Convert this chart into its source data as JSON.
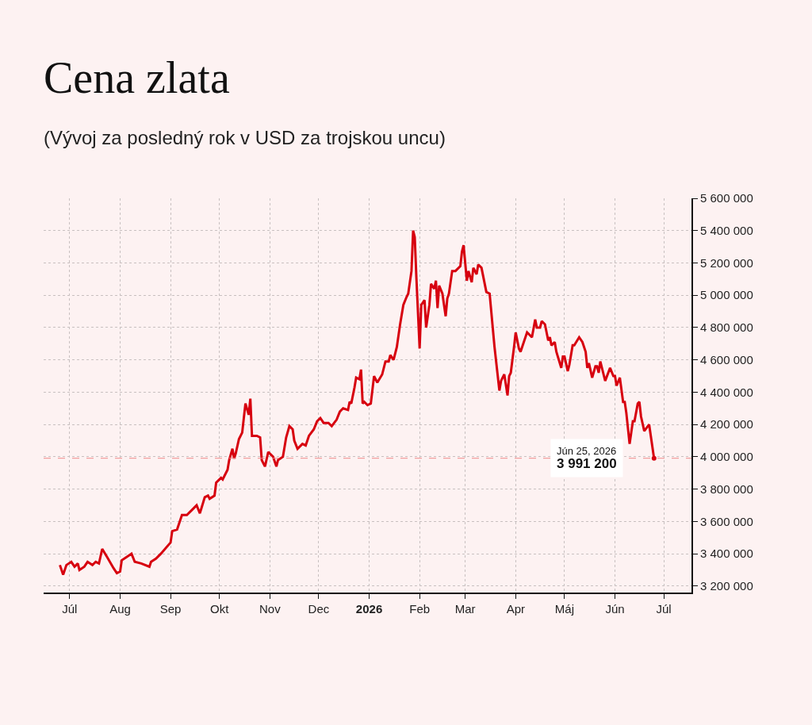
{
  "chart_data": {
    "type": "line",
    "title": "Cena zlata",
    "subtitle": "(Vývoj za posledný rok v USD za trojskou uncu)",
    "x": [
      "2025-06-25",
      "2025-06-27",
      "2025-06-29",
      "2025-07-02",
      "2025-07-04",
      "2025-07-06",
      "2025-07-07",
      "2025-07-10",
      "2025-07-12",
      "2025-07-15",
      "2025-07-17",
      "2025-07-19",
      "2025-07-21",
      "2025-07-24",
      "2025-07-28",
      "2025-07-30",
      "2025-08-01",
      "2025-08-02",
      "2025-08-05",
      "2025-08-08",
      "2025-08-10",
      "2025-08-14",
      "2025-08-19",
      "2025-08-20",
      "2025-08-23",
      "2025-08-26",
      "2025-09-01",
      "2025-09-02",
      "2025-09-05",
      "2025-09-08",
      "2025-09-11",
      "2025-09-15",
      "2025-09-17",
      "2025-09-19",
      "2025-09-22",
      "2025-09-24",
      "2025-09-25",
      "2025-09-28",
      "2025-09-29",
      "2025-10-02",
      "2025-10-03",
      "2025-10-06",
      "2025-10-07",
      "2025-10-09",
      "2025-10-10",
      "2025-10-11",
      "2025-10-13",
      "2025-10-15",
      "2025-10-17",
      "2025-10-19",
      "2025-10-20",
      "2025-10-21",
      "2025-10-24",
      "2025-10-26",
      "2025-10-27",
      "2025-10-29",
      "2025-10-31",
      "2025-11-03",
      "2025-11-05",
      "2025-11-06",
      "2025-11-09",
      "2025-11-11",
      "2025-11-13",
      "2025-11-15",
      "2025-11-16",
      "2025-11-18",
      "2025-11-21",
      "2025-11-23",
      "2025-11-25",
      "2025-11-28",
      "2025-11-30",
      "2025-12-02",
      "2025-12-04",
      "2025-12-07",
      "2025-12-09",
      "2025-12-12",
      "2025-12-14",
      "2025-12-16",
      "2025-12-19",
      "2025-12-20",
      "2025-12-21",
      "2025-12-23",
      "2025-12-24",
      "2025-12-26",
      "2025-12-27",
      "2025-12-28",
      "2025-12-29",
      "2025-12-31",
      "2026-01-02",
      "2026-01-04",
      "2026-01-06",
      "2026-01-09",
      "2026-01-11",
      "2026-01-13",
      "2026-01-14",
      "2026-01-16",
      "2026-01-18",
      "2026-01-20",
      "2026-01-22",
      "2026-01-24",
      "2026-01-25",
      "2026-01-27",
      "2026-01-28",
      "2026-01-29",
      "2026-01-30",
      "2026-02-01",
      "2026-02-02",
      "2026-02-04",
      "2026-02-05",
      "2026-02-07",
      "2026-02-08",
      "2026-02-10",
      "2026-02-11",
      "2026-02-12",
      "2026-02-13",
      "2026-02-15",
      "2026-02-17",
      "2026-02-18",
      "2026-02-19",
      "2026-02-21",
      "2026-02-23",
      "2026-02-26",
      "2026-02-27",
      "2026-02-28",
      "2026-03-02",
      "2026-03-03",
      "2026-03-05",
      "2026-03-06",
      "2026-03-08",
      "2026-03-09",
      "2026-03-11",
      "2026-03-14",
      "2026-03-16",
      "2026-03-19",
      "2026-03-22",
      "2026-03-23",
      "2026-03-25",
      "2026-03-27",
      "2026-03-28",
      "2026-03-29",
      "2026-03-31",
      "2026-04-01",
      "2026-04-03",
      "2026-04-04",
      "2026-04-06",
      "2026-04-08",
      "2026-04-11",
      "2026-04-13",
      "2026-04-14",
      "2026-04-16",
      "2026-04-17",
      "2026-04-19",
      "2026-04-21",
      "2026-04-22",
      "2026-04-23",
      "2026-04-25",
      "2026-04-26",
      "2026-04-29",
      "2026-04-30",
      "2026-05-01",
      "2026-05-03",
      "2026-05-04",
      "2026-05-06",
      "2026-05-07",
      "2026-05-10",
      "2026-05-12",
      "2026-05-14",
      "2026-05-15",
      "2026-05-16",
      "2026-05-18",
      "2026-05-20",
      "2026-05-21",
      "2026-05-22",
      "2026-05-23",
      "2026-05-26",
      "2026-05-29",
      "2026-05-31",
      "2026-06-01",
      "2026-06-02",
      "2026-06-04",
      "2026-06-06",
      "2026-06-07",
      "2026-06-08",
      "2026-06-10",
      "2026-06-12",
      "2026-06-13",
      "2026-06-15",
      "2026-06-16",
      "2026-06-17",
      "2026-06-19",
      "2026-06-22",
      "2026-06-25"
    ],
    "series": [
      {
        "color": "#d7000f",
        "values": [
          3330000,
          3270000,
          3330000,
          3350000,
          3320000,
          3340000,
          3300000,
          3320000,
          3350000,
          3330000,
          3350000,
          3340000,
          3430000,
          3380000,
          3310000,
          3280000,
          3290000,
          3360000,
          3380000,
          3400000,
          3350000,
          3340000,
          3320000,
          3350000,
          3370000,
          3400000,
          3470000,
          3540000,
          3550000,
          3640000,
          3640000,
          3680000,
          3700000,
          3650000,
          3750000,
          3760000,
          3740000,
          3760000,
          3840000,
          3870000,
          3860000,
          3920000,
          3980000,
          4050000,
          3990000,
          4020000,
          4110000,
          4150000,
          4330000,
          4260000,
          4360000,
          4130000,
          4130000,
          4120000,
          3980000,
          3940000,
          4030000,
          4000000,
          3940000,
          3980000,
          4000000,
          4120000,
          4190000,
          4170000,
          4100000,
          4050000,
          4080000,
          4070000,
          4130000,
          4170000,
          4220000,
          4240000,
          4210000,
          4210000,
          4190000,
          4230000,
          4280000,
          4300000,
          4290000,
          4340000,
          4330000,
          4430000,
          4490000,
          4480000,
          4540000,
          4330000,
          4340000,
          4320000,
          4330000,
          4500000,
          4460000,
          4510000,
          4590000,
          4590000,
          4630000,
          4600000,
          4680000,
          4820000,
          4940000,
          4990000,
          5010000,
          5150000,
          5400000,
          5360000,
          5110000,
          4670000,
          4940000,
          4970000,
          4800000,
          4940000,
          5070000,
          5040000,
          5090000,
          4920000,
          5060000,
          5010000,
          4870000,
          4980000,
          5010000,
          5150000,
          5150000,
          5180000,
          5270000,
          5310000,
          5090000,
          5150000,
          5080000,
          5170000,
          5130000,
          5190000,
          5170000,
          5020000,
          5010000,
          4680000,
          4410000,
          4470000,
          4510000,
          4380000,
          4500000,
          4520000,
          4680000,
          4770000,
          4670000,
          4650000,
          4710000,
          4770000,
          4740000,
          4850000,
          4800000,
          4800000,
          4840000,
          4820000,
          4720000,
          4740000,
          4690000,
          4710000,
          4650000,
          4550000,
          4620000,
          4620000,
          4530000,
          4570000,
          4690000,
          4690000,
          4740000,
          4710000,
          4650000,
          4550000,
          4580000,
          4490000,
          4560000,
          4560000,
          4520000,
          4590000,
          4470000,
          4550000,
          4500000,
          4500000,
          4440000,
          4490000,
          4340000,
          4340000,
          4270000,
          4080000,
          4220000,
          4220000,
          4330000,
          4340000,
          4250000,
          4160000,
          4200000,
          3991200
        ]
      }
    ],
    "xlim": [
      "2025-06-15",
      "2026-07-18"
    ],
    "xticks": [
      {
        "value": "2025-07-01",
        "label": "Júl"
      },
      {
        "value": "2025-08-01",
        "label": "Aug"
      },
      {
        "value": "2025-09-01",
        "label": "Sep"
      },
      {
        "value": "2025-10-01",
        "label": "Okt"
      },
      {
        "value": "2025-11-01",
        "label": "Nov"
      },
      {
        "value": "2025-12-01",
        "label": "Dec"
      },
      {
        "value": "2026-01-01",
        "label": "2026"
      },
      {
        "value": "2026-02-01",
        "label": "Feb"
      },
      {
        "value": "2026-03-01",
        "label": "Mar"
      },
      {
        "value": "2026-04-01",
        "label": "Apr"
      },
      {
        "value": "2026-05-01",
        "label": "Máj"
      },
      {
        "value": "2026-06-01",
        "label": "Jún"
      },
      {
        "value": "2026-07-01",
        "label": "Júl"
      }
    ],
    "ylim": [
      3160000,
      5600000
    ],
    "yticks": [
      {
        "value": 3200000,
        "label": "3 200 000"
      },
      {
        "value": 3400000,
        "label": "3 400 000"
      },
      {
        "value": 3600000,
        "label": "3 600 000"
      },
      {
        "value": 3800000,
        "label": "3 800 000"
      },
      {
        "value": 4000000,
        "label": "4 000 000"
      },
      {
        "value": 4200000,
        "label": "4 200 000"
      },
      {
        "value": 4400000,
        "label": "4 400 000"
      },
      {
        "value": 4600000,
        "label": "4 600 000"
      },
      {
        "value": 4800000,
        "label": "4 800 000"
      },
      {
        "value": 5000000,
        "label": "5 000 000"
      },
      {
        "value": 5200000,
        "label": "5 200 000"
      },
      {
        "value": 5400000,
        "label": "5 400 000"
      },
      {
        "value": 5600000,
        "label": "5 600 000"
      }
    ],
    "ref_lines": [
      {
        "axis": "y",
        "value": 3991200,
        "color": "#f08a8a",
        "line_style": "dashed"
      }
    ],
    "annotations": [
      {
        "text": "Jún 25, 2026\n3 991 200",
        "x": "2026-06-25",
        "y": 3991200
      }
    ],
    "grid": true,
    "marker": "none",
    "line_style": "solid"
  }
}
